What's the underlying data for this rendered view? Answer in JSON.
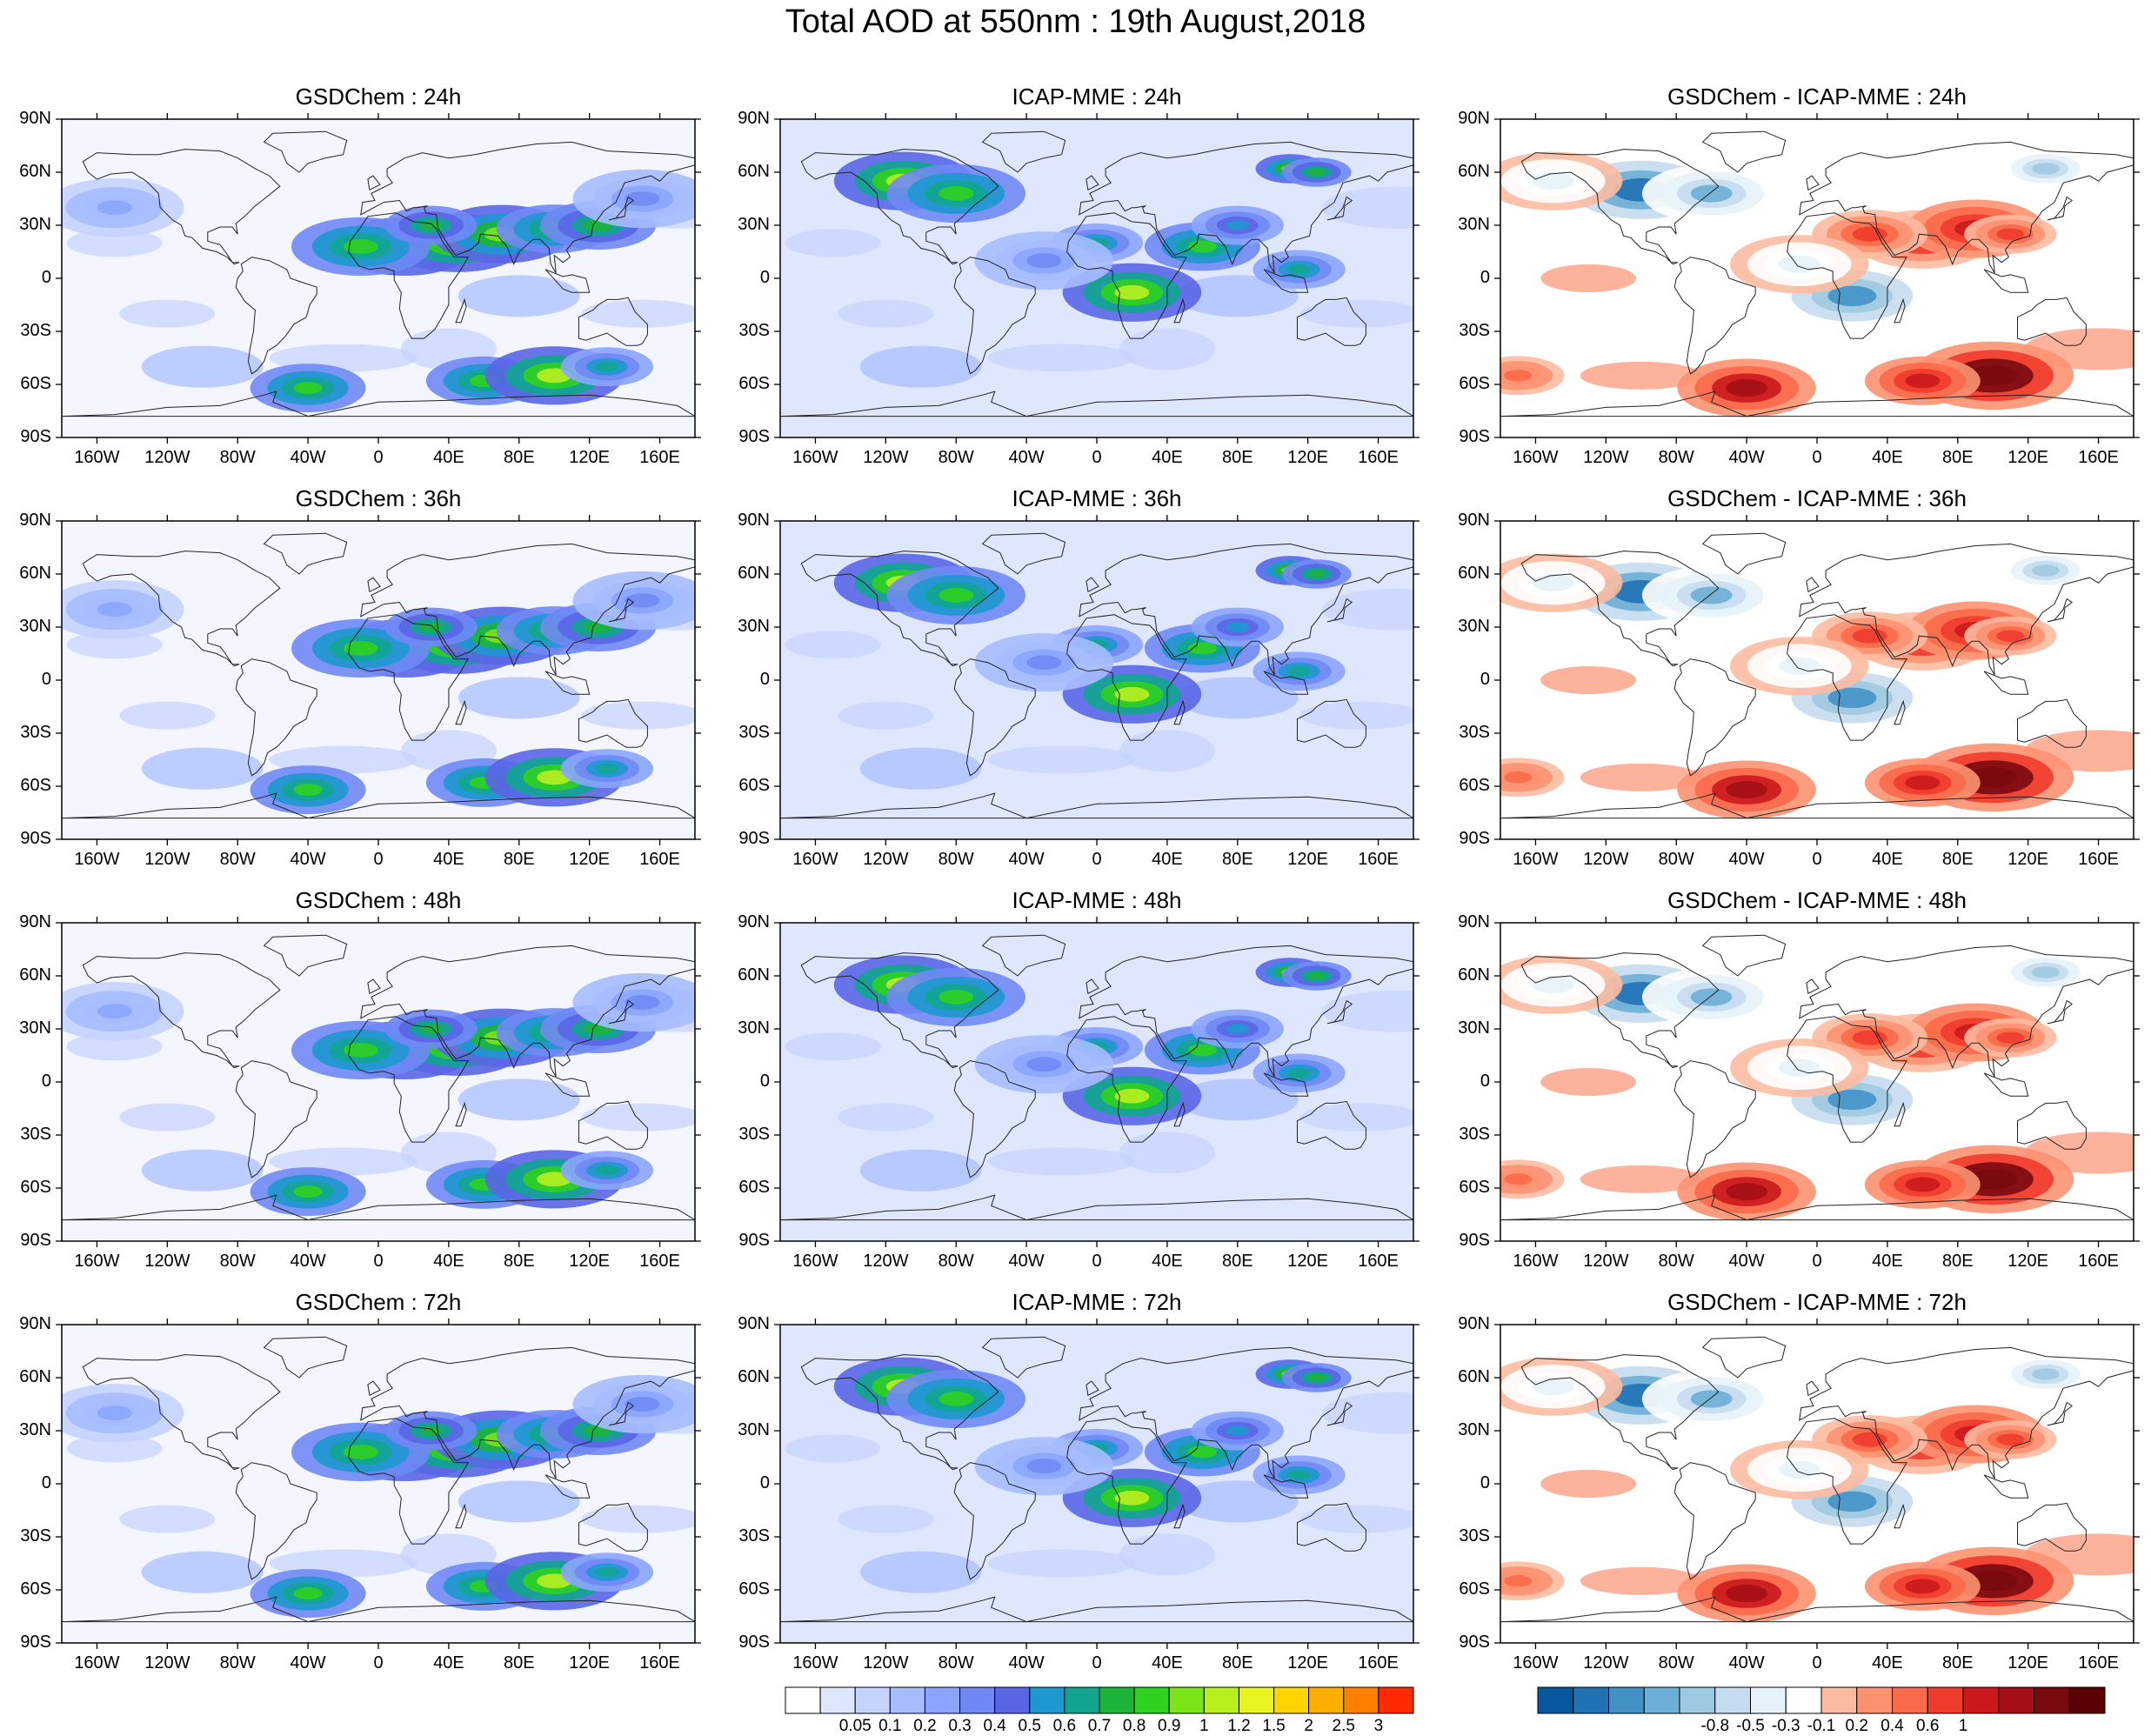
{
  "title": "Total AOD at 550nm : 19th August,2018",
  "rows": [
    "24h",
    "36h",
    "48h",
    "72h"
  ],
  "panel_titles": [
    [
      "GSDChem : 24h",
      "ICAP-MME : 24h",
      "GSDChem - ICAP-MME : 24h"
    ],
    [
      "GSDChem : 36h",
      "ICAP-MME : 36h",
      "GSDChem - ICAP-MME : 36h"
    ],
    [
      "GSDChem : 48h",
      "ICAP-MME : 48h",
      "GSDChem - ICAP-MME : 48h"
    ],
    [
      "GSDChem : 72h",
      "ICAP-MME : 72h",
      "GSDChem - ICAP-MME : 72h"
    ]
  ],
  "lat_labels": [
    "90N",
    "60N",
    "30N",
    "0",
    "30S",
    "60S",
    "90S"
  ],
  "lat_values": [
    90,
    60,
    30,
    0,
    -30,
    -60,
    -90
  ],
  "lon_labels": [
    "160W",
    "120W",
    "80W",
    "40W",
    "0",
    "40E",
    "80E",
    "120E",
    "160E"
  ],
  "lon_values": [
    -160,
    -120,
    -80,
    -40,
    0,
    40,
    80,
    120,
    160
  ],
  "aod_colorbar": {
    "labels": [
      "0.05",
      "0.1",
      "0.2",
      "0.3",
      "0.4",
      "0.5",
      "0.6",
      "0.7",
      "0.8",
      "0.9",
      "1",
      "1.2",
      "1.5",
      "2",
      "2.5",
      "3"
    ],
    "colors": [
      "#ffffff",
      "#dfe7ff",
      "#c4d3ff",
      "#a6bcff",
      "#8ba5ff",
      "#7088f5",
      "#5a66e6",
      "#1e98d0",
      "#11a590",
      "#1cb43a",
      "#2fd21e",
      "#7ae61a",
      "#b8f01e",
      "#e8f51e",
      "#ffd500",
      "#ffae00",
      "#ff7f00",
      "#ff2a00"
    ]
  },
  "diff_colorbar": {
    "labels": [
      "-0.8",
      "-0.5",
      "-0.3",
      "-0.1",
      "0.2",
      "0.4",
      "0.6",
      "1"
    ],
    "colors": [
      "#08589e",
      "#2171b5",
      "#4292c6",
      "#6baed6",
      "#9ecae1",
      "#c6dbef",
      "#e6f3fa",
      "#ffffff",
      "#fcbba1",
      "#fc9272",
      "#fb6a4a",
      "#ef3b2c",
      "#cb181d",
      "#a50f15",
      "#7a0a0f",
      "#5a0005"
    ]
  },
  "features": {
    "gsd": [
      {
        "lon": 15,
        "lat": 18,
        "s": 3,
        "v": 11
      },
      {
        "lon": 45,
        "lat": 20,
        "s": 3,
        "v": 12
      },
      {
        "lon": 70,
        "lat": 25,
        "s": 3,
        "v": 11
      },
      {
        "lon": 100,
        "lat": 28,
        "s": 2.5,
        "v": 10
      },
      {
        "lon": 125,
        "lat": 30,
        "s": 2.5,
        "v": 9
      },
      {
        "lon": -10,
        "lat": 18,
        "s": 3,
        "v": 10
      },
      {
        "lon": 30,
        "lat": 30,
        "s": 2,
        "v": 9
      },
      {
        "lon": -40,
        "lat": -62,
        "s": 2.5,
        "v": 10
      },
      {
        "lon": 60,
        "lat": -58,
        "s": 2.5,
        "v": 10
      },
      {
        "lon": 100,
        "lat": -55,
        "s": 3,
        "v": 12
      },
      {
        "lon": 130,
        "lat": -50,
        "s": 2,
        "v": 8
      },
      {
        "lon": -150,
        "lat": 40,
        "s": 3,
        "v": 4
      },
      {
        "lon": 150,
        "lat": 45,
        "s": 3,
        "v": 5
      }
    ],
    "icap": [
      {
        "lon": -110,
        "lat": 55,
        "s": 3,
        "v": 12
      },
      {
        "lon": -80,
        "lat": 48,
        "s": 3,
        "v": 10
      },
      {
        "lon": 20,
        "lat": -8,
        "s": 3,
        "v": 12
      },
      {
        "lon": 60,
        "lat": 18,
        "s": 2.5,
        "v": 10
      },
      {
        "lon": 0,
        "lat": 20,
        "s": 2,
        "v": 8
      },
      {
        "lon": 110,
        "lat": 62,
        "s": 1.5,
        "v": 11
      },
      {
        "lon": 125,
        "lat": 60,
        "s": 1.5,
        "v": 9
      },
      {
        "lon": 115,
        "lat": 5,
        "s": 2,
        "v": 8
      },
      {
        "lon": 80,
        "lat": 30,
        "s": 2,
        "v": 7
      },
      {
        "lon": -30,
        "lat": 10,
        "s": 3,
        "v": 5
      }
    ],
    "diff": [
      {
        "lon": -100,
        "lat": 50,
        "s": 4,
        "v": -0.7
      },
      {
        "lon": -60,
        "lat": 48,
        "s": 3,
        "v": -0.5
      },
      {
        "lon": 20,
        "lat": -10,
        "s": 3.5,
        "v": -0.6
      },
      {
        "lon": 60,
        "lat": 22,
        "s": 3,
        "v": 0.4
      },
      {
        "lon": 90,
        "lat": 28,
        "s": 3,
        "v": 0.5
      },
      {
        "lon": 30,
        "lat": 25,
        "s": 2.5,
        "v": 0.35
      },
      {
        "lon": 110,
        "lat": 25,
        "s": 2,
        "v": 0.35
      },
      {
        "lon": -40,
        "lat": -62,
        "s": 3,
        "v": 0.6
      },
      {
        "lon": 100,
        "lat": -55,
        "s": 3.5,
        "v": 0.8
      },
      {
        "lon": 60,
        "lat": -58,
        "s": 2.5,
        "v": 0.45
      },
      {
        "lon": 130,
        "lat": 62,
        "s": 2,
        "v": -0.4
      },
      {
        "lon": -10,
        "lat": 8,
        "s": 3,
        "v": -0.25
      },
      {
        "lon": -150,
        "lat": 55,
        "s": 3,
        "v": -0.2
      },
      {
        "lon": -170,
        "lat": -55,
        "s": 2,
        "v": 0.25
      }
    ]
  }
}
